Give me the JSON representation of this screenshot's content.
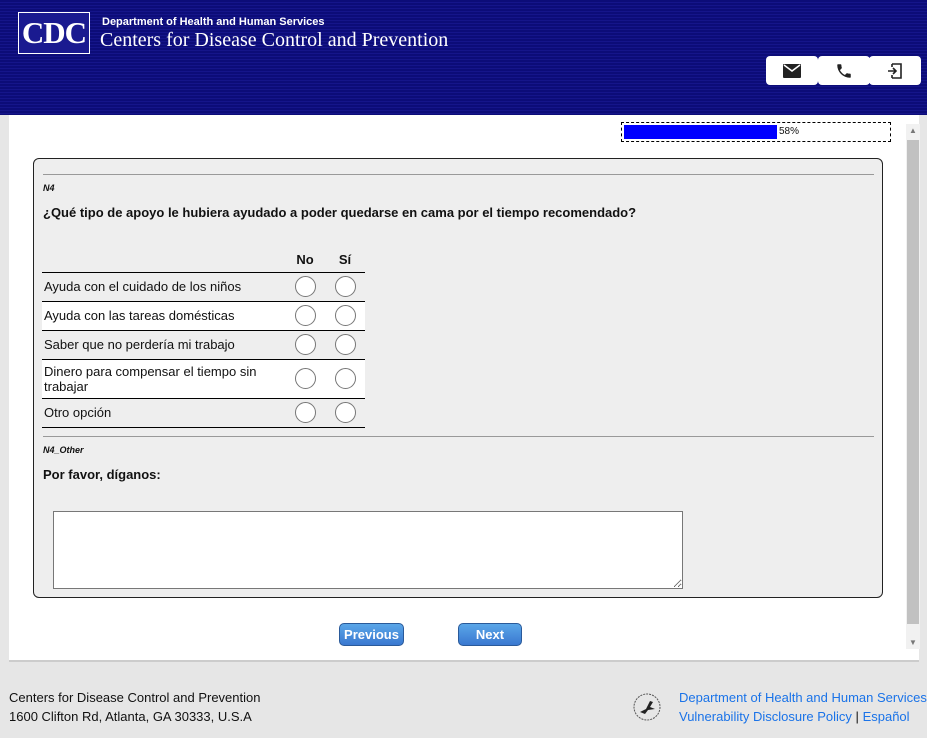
{
  "header": {
    "logo_text": "CDC",
    "department": "Department of Health and Human Services",
    "agency": "Centers for Disease Control and Prevention",
    "buttons": [
      {
        "icon": "mail-icon"
      },
      {
        "icon": "phone-icon"
      },
      {
        "icon": "exit-icon"
      }
    ]
  },
  "progress": {
    "value": 58,
    "label": "58%",
    "color": "#0000ff"
  },
  "question1": {
    "id": "N4",
    "text": "¿Qué tipo de apoyo le hubiera ayudado a poder quedarse en cama por el tiempo recomendado?",
    "columns": [
      "No",
      "Sí"
    ],
    "rows": [
      {
        "label": "Ayuda con el cuidado de los niños"
      },
      {
        "label": "Ayuda con las tareas domésticas"
      },
      {
        "label": "Saber que no perdería mi trabajo"
      },
      {
        "label": "Dinero para compensar el tiempo sin trabajar"
      },
      {
        "label": "Otro opción"
      }
    ]
  },
  "question2": {
    "id": "N4_Other",
    "text": "Por favor, díganos:",
    "value": ""
  },
  "nav": {
    "previous": "Previous",
    "next": "Next"
  },
  "footer": {
    "org": "Centers for Disease Control and Prevention",
    "address": "1600 Clifton Rd, Atlanta, GA 30333, U.S.A",
    "hhs_link": "Department of Health and Human Services",
    "vdp_link": "Vulnerability Disclosure Policy",
    "separator": "|",
    "lang_link": "Español"
  }
}
